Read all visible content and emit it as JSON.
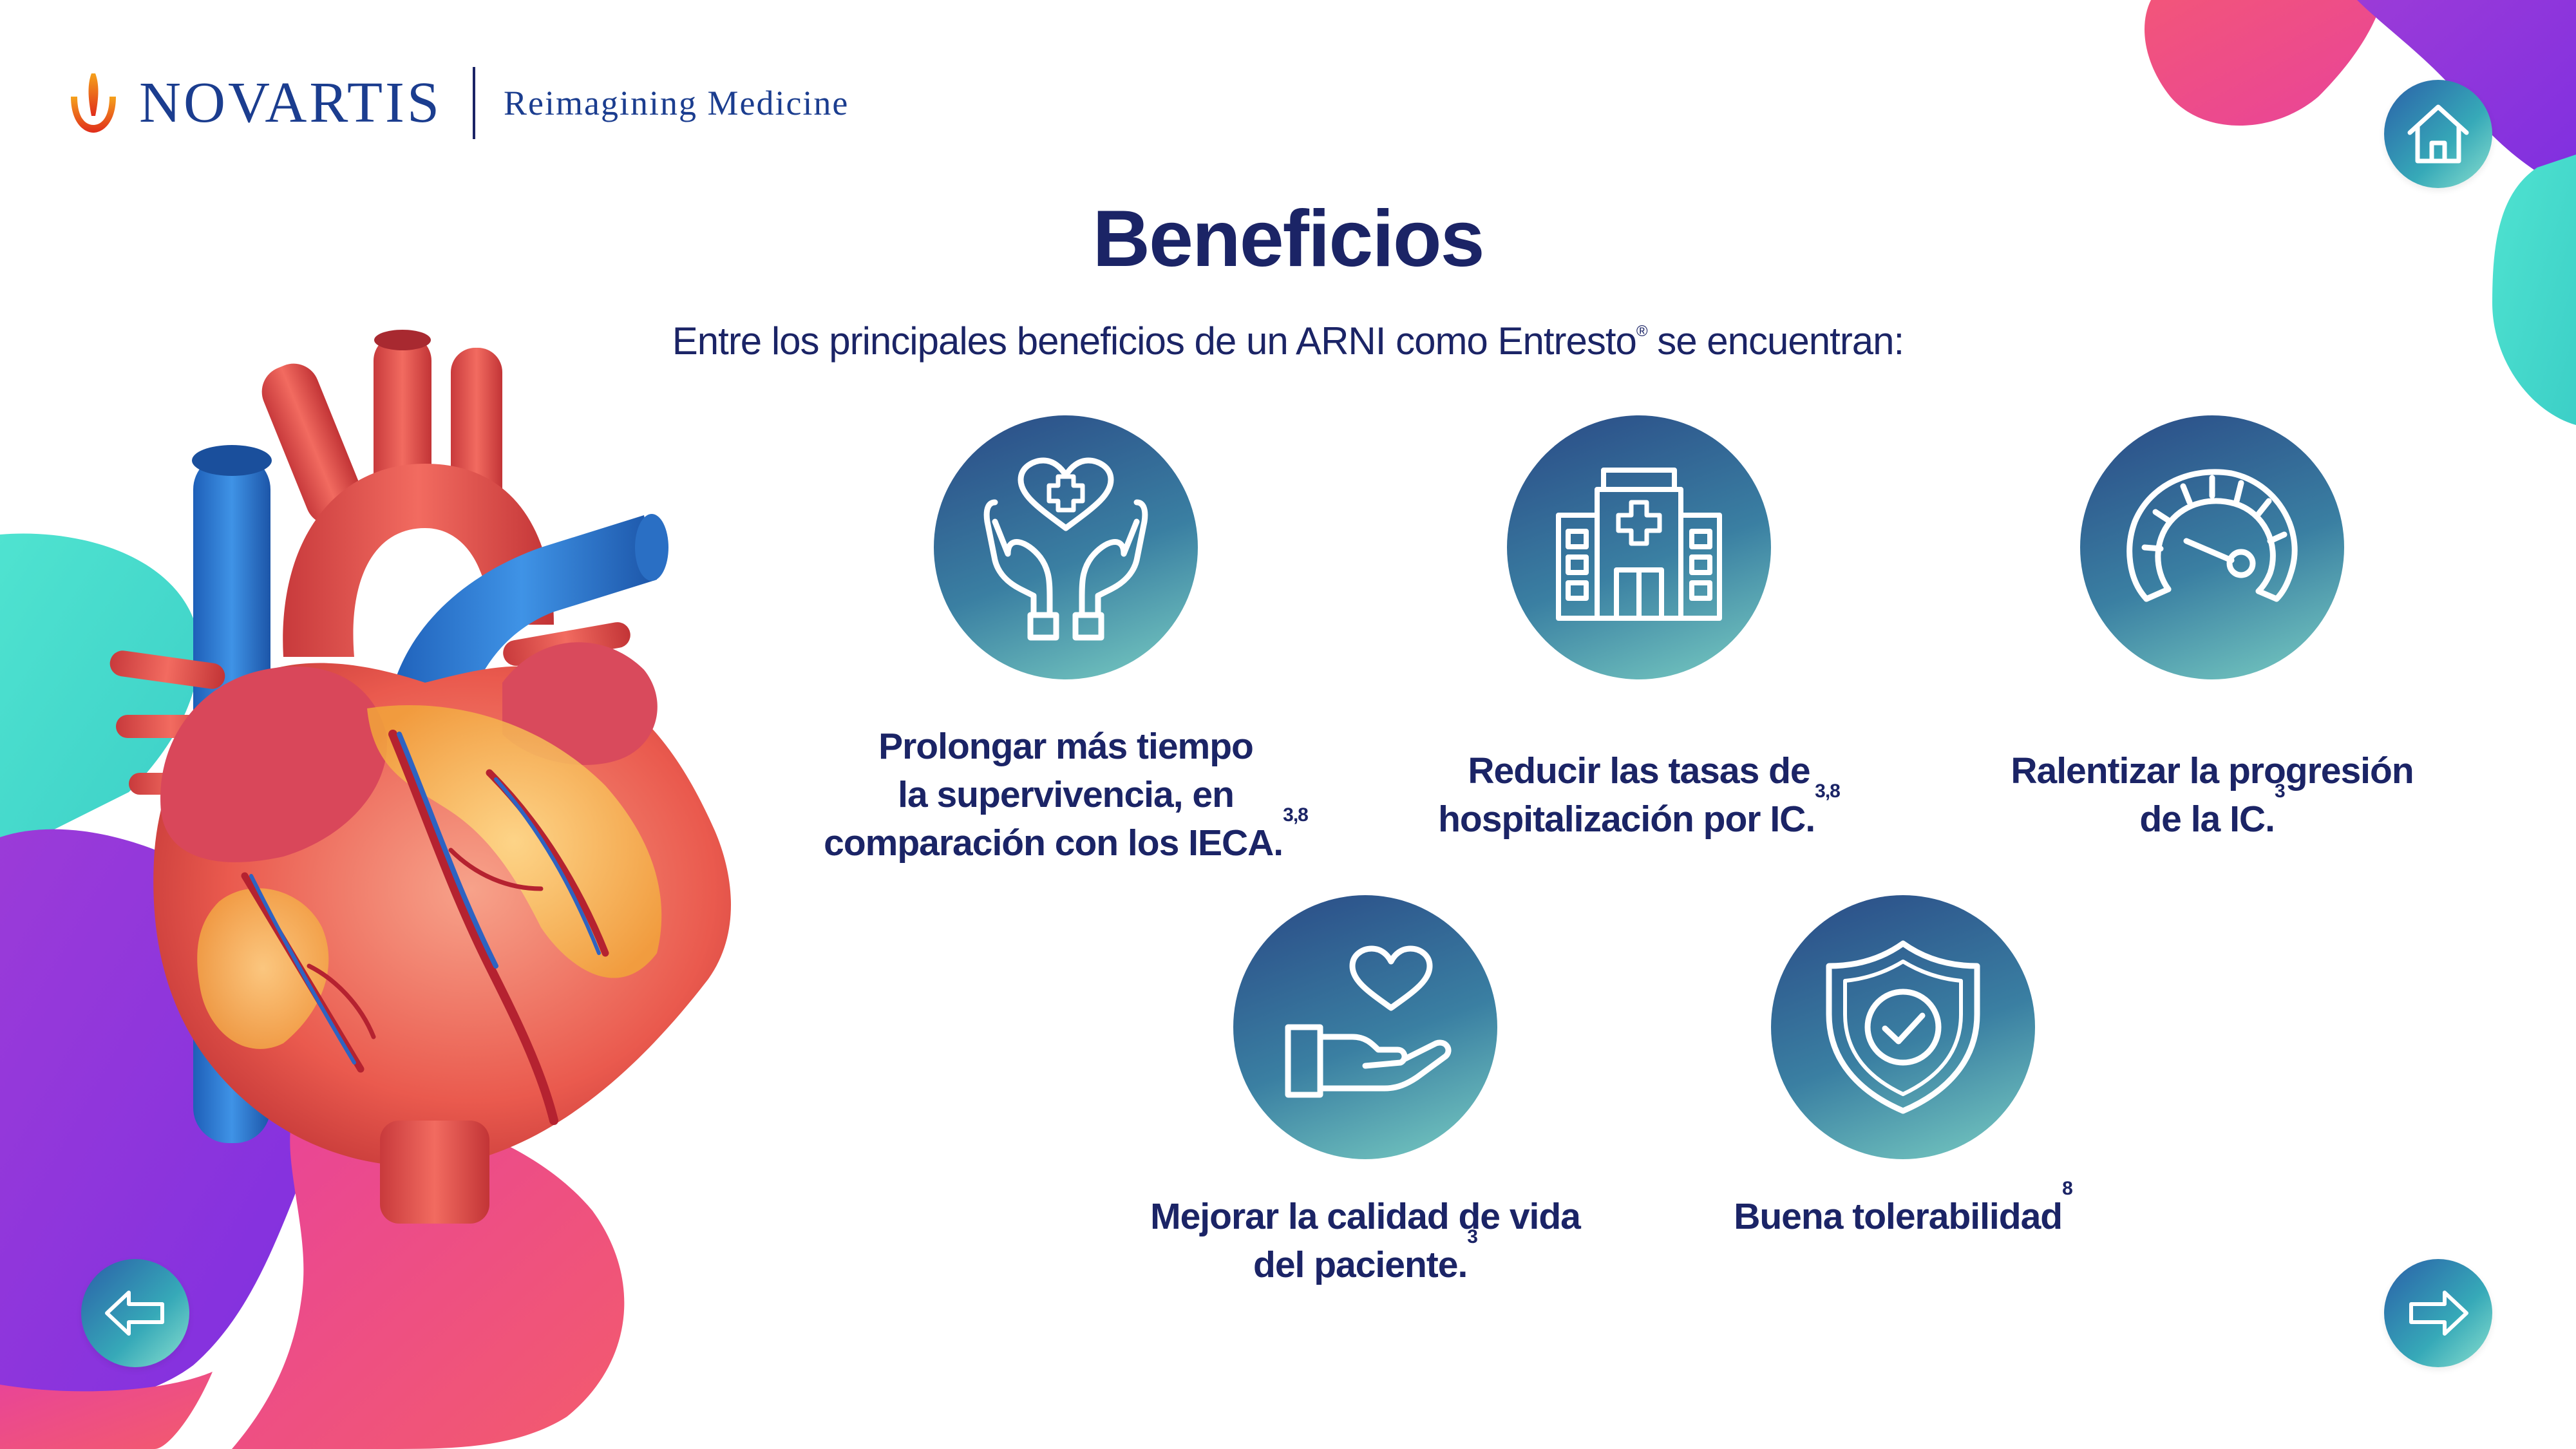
{
  "brand": {
    "name": "NOVARTIS",
    "tagline": "Reimagining Medicine",
    "colors": {
      "navy": "#1b2466",
      "blue": "#1b3d8f",
      "orange": "#e8741b"
    }
  },
  "page": {
    "title": "Beneficios",
    "subtitle_pre": "Entre los principales beneficios de un ARNI como Entresto",
    "subtitle_reg": "®",
    "subtitle_post": " se encuentran:"
  },
  "benefits": [
    {
      "icon": "hands-heart-cross-icon",
      "lines": [
        "Prolongar más tiempo",
        "la supervivencia, en",
        "comparación con los IECA."
      ],
      "ref": "3,8"
    },
    {
      "icon": "hospital-icon",
      "lines": [
        "Reducir las tasas de",
        "hospitalización por IC."
      ],
      "ref": "3,8"
    },
    {
      "icon": "speedometer-icon",
      "lines": [
        "Ralentizar la progresión",
        "de la IC."
      ],
      "ref": "3"
    },
    {
      "icon": "hand-heart-icon",
      "lines": [
        "Mejorar la calidad de vida",
        "del paciente."
      ],
      "ref": "3"
    },
    {
      "icon": "shield-check-icon",
      "lines": [
        "Buena tolerabilidad"
      ],
      "ref": "8"
    }
  ],
  "navigation": {
    "home": "home-icon",
    "prev": "arrow-left-icon",
    "next": "arrow-right-icon"
  },
  "illustration": "anatomical-heart"
}
